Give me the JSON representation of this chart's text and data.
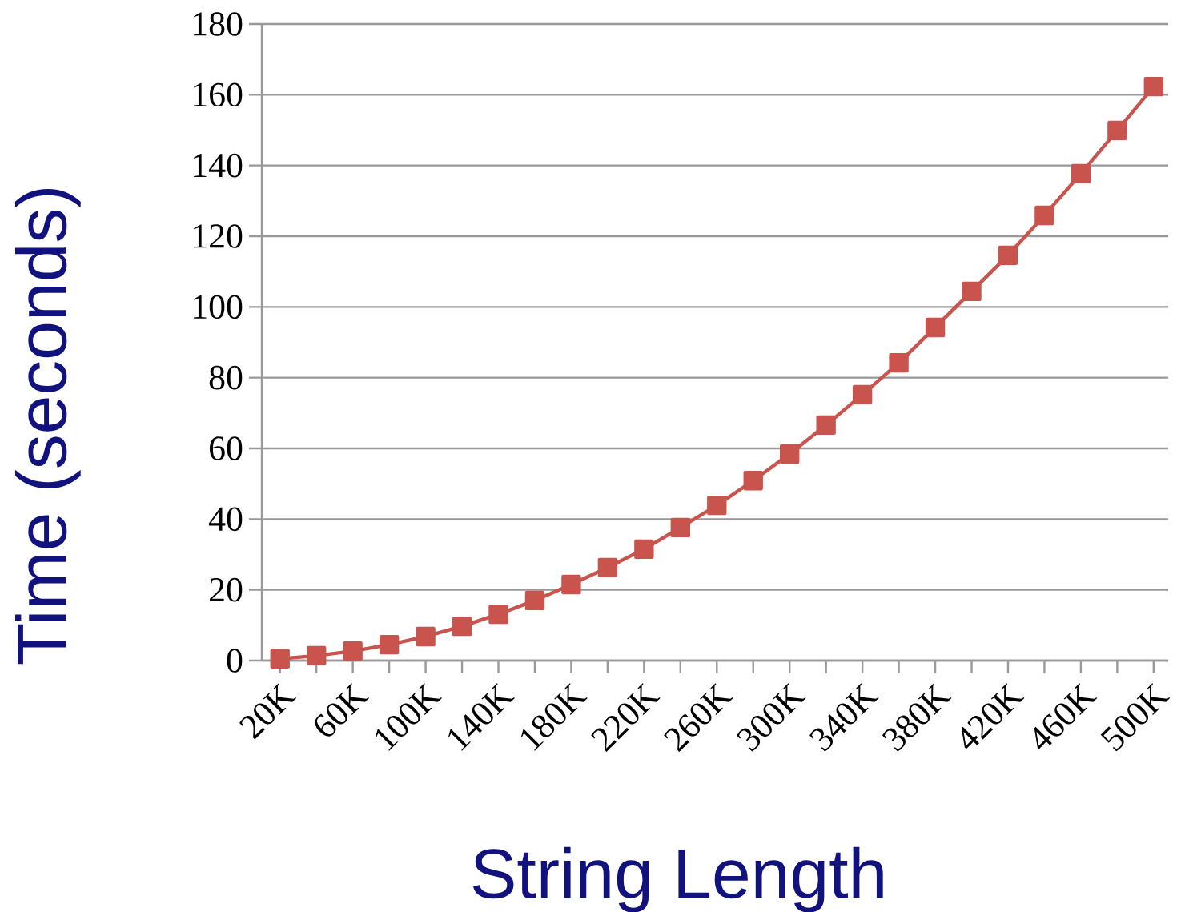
{
  "chart_data": {
    "type": "line",
    "xlabel": "String Length",
    "ylabel": "Time (seconds)",
    "categories": [
      "20K",
      null,
      "60K",
      null,
      "100K",
      null,
      "140K",
      null,
      "180K",
      null,
      "220K",
      null,
      "260K",
      null,
      "300K",
      null,
      "340K",
      null,
      "380K",
      null,
      "420K",
      null,
      "460K",
      null,
      "500K"
    ],
    "series": [
      {
        "color": "#c9544e",
        "values": [
          0.5,
          1.4,
          2.7,
          4.5,
          6.8,
          9.7,
          13.1,
          17.0,
          21.5,
          26.3,
          31.5,
          37.6,
          43.9,
          50.9,
          58.4,
          66.6,
          75.2,
          84.2,
          94.2,
          104.4,
          114.6,
          125.9,
          137.7,
          149.9,
          162.3
        ]
      }
    ],
    "ylim": [
      0,
      180
    ],
    "yticks": [
      0,
      20,
      40,
      60,
      80,
      100,
      120,
      140,
      160,
      180
    ],
    "grid": "y",
    "marker": "square",
    "line_style": "solid"
  }
}
